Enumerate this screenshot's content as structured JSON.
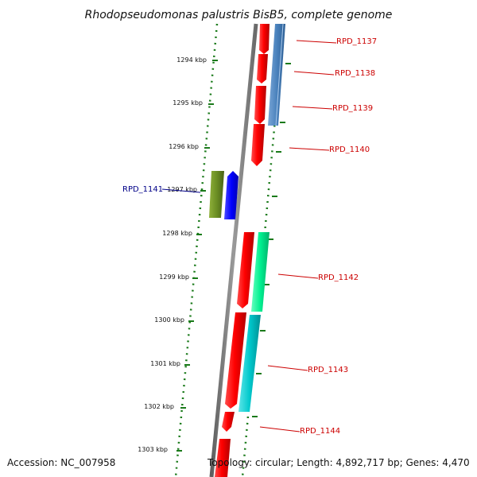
{
  "title": "Rhodopseudomonas palustris BisB5, complete genome",
  "footer": {
    "accession": "Accession: NC_007958",
    "topology": "Topology: circular; Length: 4,892,717 bp; Genes: 4,470"
  },
  "scale_labels": [
    "1294 kbp",
    "1295 kbp",
    "1296 kbp",
    "1297 kbp",
    "1298 kbp",
    "1299 kbp",
    "1300 kbp",
    "1301 kbp",
    "1302 kbp",
    "1303 kbp"
  ],
  "genes": [
    {
      "name": "RPD_1137",
      "color": "#cc0000"
    },
    {
      "name": "RPD_1138",
      "color": "#cc0000"
    },
    {
      "name": "RPD_1139",
      "color": "#cc0000"
    },
    {
      "name": "RPD_1140",
      "color": "#cc0000"
    },
    {
      "name": "RPD_1141",
      "color": "#000088"
    },
    {
      "name": "RPD_1142",
      "color": "#cc0000"
    },
    {
      "name": "RPD_1143",
      "color": "#cc0000"
    },
    {
      "name": "RPD_1144",
      "color": "#cc0000"
    }
  ],
  "colors": {
    "backbone": "#8a8a8a",
    "scale_dots": "#1a7a1a",
    "cds_red": "#ff0000",
    "cds_steelblue": "#4a82bd",
    "cds_olive": "#6b8e23",
    "cds_blue": "#0000ff",
    "cds_springgreen": "#00e890",
    "cds_cyan": "#00c8cc"
  }
}
